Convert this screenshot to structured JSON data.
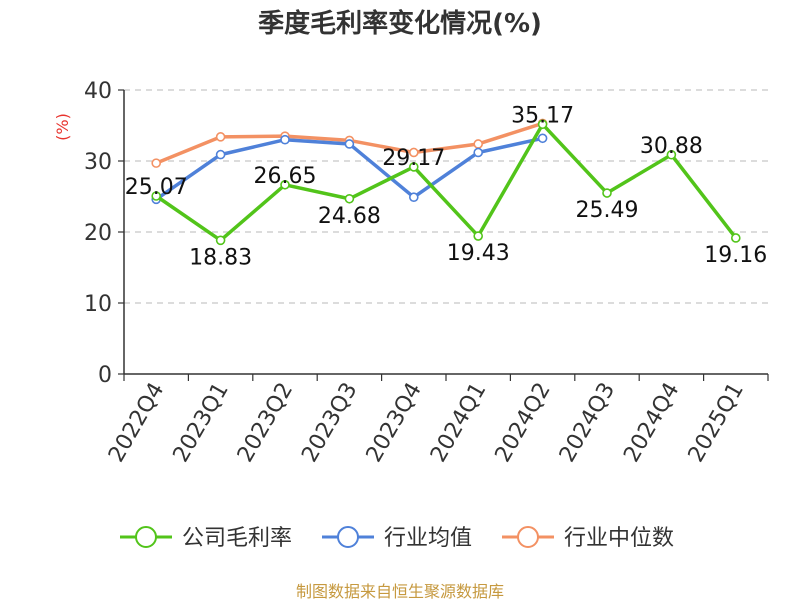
{
  "chart_data": {
    "type": "line",
    "title": "季度毛利率变化情况(%)",
    "ylabel": "(%)",
    "categories": [
      "2022Q4",
      "2023Q1",
      "2023Q2",
      "2023Q3",
      "2023Q4",
      "2024Q1",
      "2024Q2",
      "2024Q3",
      "2024Q4",
      "2025Q1"
    ],
    "ylim": [
      0,
      40
    ],
    "yticks": [
      0,
      10,
      20,
      30,
      40
    ],
    "grid": true,
    "legend_position": "bottom",
    "series": [
      {
        "name": "公司毛利率",
        "color": "#52c41a",
        "values": [
          25.07,
          18.83,
          26.65,
          24.68,
          29.17,
          19.43,
          35.17,
          25.49,
          30.88,
          19.16
        ],
        "labels": true
      },
      {
        "name": "行业均值",
        "color": "#4f81d9",
        "values": [
          24.6,
          30.9,
          33.0,
          32.4,
          24.9,
          31.2,
          33.2,
          null,
          null,
          null
        ],
        "labels": false
      },
      {
        "name": "行业中位数",
        "color": "#f39163",
        "values": [
          29.7,
          33.4,
          33.5,
          32.9,
          31.2,
          32.4,
          35.3,
          null,
          null,
          null
        ],
        "labels": false
      }
    ]
  },
  "footer": {
    "source": "制图数据来自恒生聚源数据库"
  }
}
